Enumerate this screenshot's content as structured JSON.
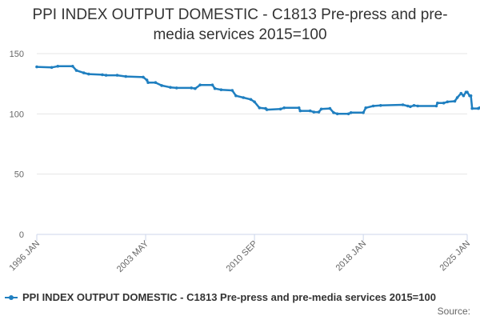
{
  "title_line1": "PPI INDEX OUTPUT DOMESTIC - C1813 Pre-press and pre-",
  "title_line2": "media services 2015=100",
  "legend_label": "PPI INDEX OUTPUT DOMESTIC - C1813 Pre-press and pre-media services 2015=100",
  "source_label": "Source:",
  "colors": {
    "series": "#1f7fc0",
    "grid": "#e6e6e6",
    "axis": "#ccd6eb",
    "text": "#666666"
  },
  "chart_data": {
    "type": "line",
    "title": "PPI INDEX OUTPUT DOMESTIC - C1813 Pre-press and pre-media services 2015=100",
    "xlabel": "",
    "ylabel": "",
    "ylim": [
      0,
      150
    ],
    "yticks": [
      0,
      50,
      100,
      150
    ],
    "xlim": [
      "1996-01",
      "2025-01"
    ],
    "xticks": [
      {
        "date": "1996-01",
        "label": "1996 JAN"
      },
      {
        "date": "2003-05",
        "label": "2003 MAY"
      },
      {
        "date": "2010-09",
        "label": "2010 SEP"
      },
      {
        "date": "2018-01",
        "label": "2018 JAN"
      },
      {
        "date": "2025-01",
        "label": "2025 JAN"
      }
    ],
    "grid": true,
    "legend": "bottom",
    "series": [
      {
        "name": "PPI INDEX OUTPUT DOMESTIC - C1813 Pre-press and pre-media services 2015=100",
        "points": [
          [
            "1996-01",
            139
          ],
          [
            "1997-01",
            138.5
          ],
          [
            "1997-06",
            139.5
          ],
          [
            "1998-06",
            139.5
          ],
          [
            "1998-09",
            136
          ],
          [
            "1999-03",
            134
          ],
          [
            "1999-07",
            133
          ],
          [
            "2000-06",
            132.5
          ],
          [
            "2000-09",
            132
          ],
          [
            "2001-06",
            132
          ],
          [
            "2002-01",
            131
          ],
          [
            "2003-03",
            130.5
          ],
          [
            "2003-06",
            128
          ],
          [
            "2003-07",
            126
          ],
          [
            "2004-01",
            126
          ],
          [
            "2004-06",
            123.5
          ],
          [
            "2005-01",
            122
          ],
          [
            "2005-06",
            121.5
          ],
          [
            "2006-06",
            121.5
          ],
          [
            "2006-09",
            121
          ],
          [
            "2007-01",
            124
          ],
          [
            "2007-11",
            124
          ],
          [
            "2008-01",
            121
          ],
          [
            "2008-06",
            120
          ],
          [
            "2009-03",
            119.5
          ],
          [
            "2009-06",
            115
          ],
          [
            "2009-12",
            113.5
          ],
          [
            "2010-06",
            112
          ],
          [
            "2010-09",
            110
          ],
          [
            "2011-01",
            105
          ],
          [
            "2011-06",
            104.5
          ],
          [
            "2011-07",
            103.5
          ],
          [
            "2012-06",
            104
          ],
          [
            "2012-09",
            105
          ],
          [
            "2013-09",
            105
          ],
          [
            "2013-10",
            102.5
          ],
          [
            "2014-06",
            102.5
          ],
          [
            "2014-09",
            101.5
          ],
          [
            "2015-01",
            101.5
          ],
          [
            "2015-03",
            104
          ],
          [
            "2015-10",
            104.5
          ],
          [
            "2016-01",
            101
          ],
          [
            "2016-04",
            100
          ],
          [
            "2017-01",
            100
          ],
          [
            "2017-03",
            101
          ],
          [
            "2018-01",
            101
          ],
          [
            "2018-03",
            105
          ],
          [
            "2018-09",
            106.5
          ],
          [
            "2019-03",
            107
          ],
          [
            "2020-09",
            107.5
          ],
          [
            "2021-01",
            106.5
          ],
          [
            "2021-03",
            106
          ],
          [
            "2021-06",
            107
          ],
          [
            "2021-09",
            106.5
          ],
          [
            "2022-12",
            106.5
          ],
          [
            "2023-01",
            109
          ],
          [
            "2023-06",
            109
          ],
          [
            "2023-09",
            110
          ],
          [
            "2024-03",
            110.5
          ],
          [
            "2024-05",
            113.5
          ],
          [
            "2024-08",
            117
          ],
          [
            "2024-10",
            115
          ],
          [
            "2024-12",
            118
          ],
          [
            "2025-01",
            118
          ],
          [
            "2025-03",
            115
          ],
          [
            "2025-04",
            115
          ],
          [
            "2025-05",
            104.5
          ],
          [
            "2025-10",
            104.5
          ],
          [
            "2025-11",
            105
          ]
        ]
      }
    ]
  }
}
